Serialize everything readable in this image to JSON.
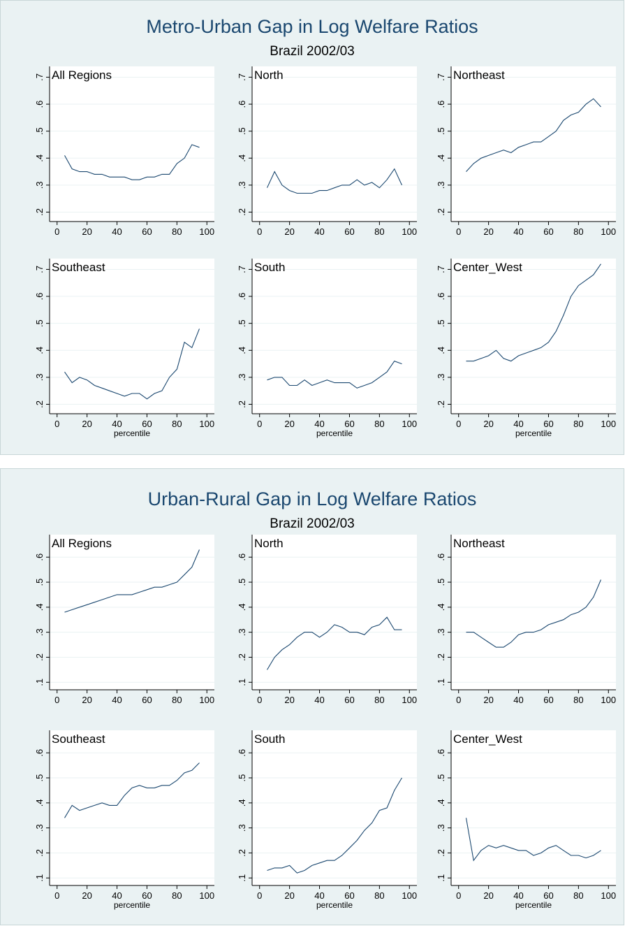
{
  "figures": [
    {
      "title": "Metro-Urban Gap in Log Welfare Ratios",
      "subtitle": "Brazil 2002/03"
    },
    {
      "title": "Urban-Rural Gap in Log Welfare Ratios",
      "subtitle": "Brazil 2002/03"
    }
  ],
  "chart_data": [
    {
      "type": "line",
      "title": "All Regions",
      "x": [
        5,
        10,
        15,
        20,
        25,
        30,
        35,
        40,
        45,
        50,
        55,
        60,
        65,
        70,
        75,
        80,
        85,
        90,
        95
      ],
      "values": [
        0.41,
        0.36,
        0.35,
        0.35,
        0.34,
        0.34,
        0.33,
        0.33,
        0.33,
        0.32,
        0.32,
        0.33,
        0.33,
        0.34,
        0.34,
        0.38,
        0.4,
        0.45,
        0.44
      ],
      "color": "#1a476f",
      "grid": true,
      "xlim": [
        -5,
        105
      ],
      "ylim": [
        0.165,
        0.74
      ],
      "xticks": [
        0,
        20,
        40,
        60,
        80,
        100
      ],
      "yticks": [
        {
          "value": 0.2,
          "label": ".2"
        },
        {
          "value": 0.3,
          "label": ".3"
        },
        {
          "value": 0.4,
          "label": ".4"
        },
        {
          "value": 0.5,
          "label": ".5"
        },
        {
          "value": 0.6,
          "label": ".6"
        },
        {
          "value": 0.7,
          "label": ".7"
        }
      ]
    },
    {
      "type": "line",
      "title": "North",
      "x": [
        5,
        10,
        15,
        20,
        25,
        30,
        35,
        40,
        45,
        50,
        55,
        60,
        65,
        70,
        75,
        80,
        85,
        90,
        95
      ],
      "values": [
        0.29,
        0.35,
        0.3,
        0.28,
        0.27,
        0.27,
        0.27,
        0.28,
        0.28,
        0.29,
        0.3,
        0.3,
        0.32,
        0.3,
        0.31,
        0.29,
        0.32,
        0.36,
        0.3
      ],
      "color": "#1a476f",
      "grid": true,
      "xlim": [
        -5,
        105
      ],
      "ylim": [
        0.165,
        0.74
      ],
      "xticks": [
        0,
        20,
        40,
        60,
        80,
        100
      ],
      "yticks": [
        {
          "value": 0.2,
          "label": ".2"
        },
        {
          "value": 0.3,
          "label": ".3"
        },
        {
          "value": 0.4,
          "label": ".4"
        },
        {
          "value": 0.5,
          "label": ".5"
        },
        {
          "value": 0.6,
          "label": ".6"
        },
        {
          "value": 0.7,
          "label": ".7"
        }
      ]
    },
    {
      "type": "line",
      "title": "Northeast",
      "x": [
        5,
        10,
        15,
        20,
        25,
        30,
        35,
        40,
        45,
        50,
        55,
        60,
        65,
        70,
        75,
        80,
        85,
        90,
        95
      ],
      "values": [
        0.35,
        0.38,
        0.4,
        0.41,
        0.42,
        0.43,
        0.42,
        0.44,
        0.45,
        0.46,
        0.46,
        0.48,
        0.5,
        0.54,
        0.56,
        0.57,
        0.6,
        0.62,
        0.59
      ],
      "color": "#1a476f",
      "grid": true,
      "xlim": [
        -5,
        105
      ],
      "ylim": [
        0.165,
        0.74
      ],
      "xticks": [
        0,
        20,
        40,
        60,
        80,
        100
      ],
      "yticks": [
        {
          "value": 0.2,
          "label": ".2"
        },
        {
          "value": 0.3,
          "label": ".3"
        },
        {
          "value": 0.4,
          "label": ".4"
        },
        {
          "value": 0.5,
          "label": ".5"
        },
        {
          "value": 0.6,
          "label": ".6"
        },
        {
          "value": 0.7,
          "label": ".7"
        }
      ]
    },
    {
      "type": "line",
      "title": "Southeast",
      "xlabel": "percentile",
      "x": [
        5,
        10,
        15,
        20,
        25,
        30,
        35,
        40,
        45,
        50,
        55,
        60,
        65,
        70,
        75,
        80,
        85,
        90,
        95
      ],
      "values": [
        0.32,
        0.28,
        0.3,
        0.29,
        0.27,
        0.26,
        0.25,
        0.24,
        0.23,
        0.24,
        0.24,
        0.22,
        0.24,
        0.25,
        0.3,
        0.33,
        0.43,
        0.41,
        0.48
      ],
      "color": "#1a476f",
      "grid": true,
      "xlim": [
        -5,
        105
      ],
      "ylim": [
        0.165,
        0.74
      ],
      "xticks": [
        0,
        20,
        40,
        60,
        80,
        100
      ],
      "yticks": [
        {
          "value": 0.2,
          "label": ".2"
        },
        {
          "value": 0.3,
          "label": ".3"
        },
        {
          "value": 0.4,
          "label": ".4"
        },
        {
          "value": 0.5,
          "label": ".5"
        },
        {
          "value": 0.6,
          "label": ".6"
        },
        {
          "value": 0.7,
          "label": ".7"
        }
      ]
    },
    {
      "type": "line",
      "title": "South",
      "xlabel": "percentile",
      "x": [
        5,
        10,
        15,
        20,
        25,
        30,
        35,
        40,
        45,
        50,
        55,
        60,
        65,
        70,
        75,
        80,
        85,
        90,
        95
      ],
      "values": [
        0.29,
        0.3,
        0.3,
        0.27,
        0.27,
        0.29,
        0.27,
        0.28,
        0.29,
        0.28,
        0.28,
        0.28,
        0.26,
        0.27,
        0.28,
        0.3,
        0.32,
        0.36,
        0.35
      ],
      "color": "#1a476f",
      "grid": true,
      "xlim": [
        -5,
        105
      ],
      "ylim": [
        0.165,
        0.74
      ],
      "xticks": [
        0,
        20,
        40,
        60,
        80,
        100
      ],
      "yticks": [
        {
          "value": 0.2,
          "label": ".2"
        },
        {
          "value": 0.3,
          "label": ".3"
        },
        {
          "value": 0.4,
          "label": ".4"
        },
        {
          "value": 0.5,
          "label": ".5"
        },
        {
          "value": 0.6,
          "label": ".6"
        },
        {
          "value": 0.7,
          "label": ".7"
        }
      ]
    },
    {
      "type": "line",
      "title": "Center_West",
      "xlabel": "percentile",
      "x": [
        5,
        10,
        15,
        20,
        25,
        30,
        35,
        40,
        45,
        50,
        55,
        60,
        65,
        70,
        75,
        80,
        85,
        90,
        95
      ],
      "values": [
        0.36,
        0.36,
        0.37,
        0.38,
        0.4,
        0.37,
        0.36,
        0.38,
        0.39,
        0.4,
        0.41,
        0.43,
        0.47,
        0.53,
        0.6,
        0.64,
        0.66,
        0.68,
        0.72
      ],
      "color": "#1a476f",
      "grid": true,
      "xlim": [
        -5,
        105
      ],
      "ylim": [
        0.165,
        0.74
      ],
      "xticks": [
        0,
        20,
        40,
        60,
        80,
        100
      ],
      "yticks": [
        {
          "value": 0.2,
          "label": ".2"
        },
        {
          "value": 0.3,
          "label": ".3"
        },
        {
          "value": 0.4,
          "label": ".4"
        },
        {
          "value": 0.5,
          "label": ".5"
        },
        {
          "value": 0.6,
          "label": ".6"
        },
        {
          "value": 0.7,
          "label": ".7"
        }
      ]
    },
    {
      "type": "line",
      "title": "All Regions",
      "x": [
        5,
        10,
        15,
        20,
        25,
        30,
        35,
        40,
        45,
        50,
        55,
        60,
        65,
        70,
        75,
        80,
        85,
        90,
        95
      ],
      "values": [
        0.38,
        0.39,
        0.4,
        0.41,
        0.42,
        0.43,
        0.44,
        0.45,
        0.45,
        0.45,
        0.46,
        0.47,
        0.48,
        0.48,
        0.49,
        0.5,
        0.53,
        0.56,
        0.63
      ],
      "color": "#1a476f",
      "grid": true,
      "xlim": [
        -5,
        105
      ],
      "ylim": [
        0.07,
        0.69
      ],
      "xticks": [
        0,
        20,
        40,
        60,
        80,
        100
      ],
      "yticks": [
        {
          "value": 0.1,
          "label": ".1"
        },
        {
          "value": 0.2,
          "label": ".2"
        },
        {
          "value": 0.3,
          "label": ".3"
        },
        {
          "value": 0.4,
          "label": ".4"
        },
        {
          "value": 0.5,
          "label": ".5"
        },
        {
          "value": 0.6,
          "label": ".6"
        }
      ]
    },
    {
      "type": "line",
      "title": "North",
      "x": [
        5,
        10,
        15,
        20,
        25,
        30,
        35,
        40,
        45,
        50,
        55,
        60,
        65,
        70,
        75,
        80,
        85,
        90,
        95
      ],
      "values": [
        0.15,
        0.2,
        0.23,
        0.25,
        0.28,
        0.3,
        0.3,
        0.28,
        0.3,
        0.33,
        0.32,
        0.3,
        0.3,
        0.29,
        0.32,
        0.33,
        0.36,
        0.31,
        0.31
      ],
      "color": "#1a476f",
      "grid": true,
      "xlim": [
        -5,
        105
      ],
      "ylim": [
        0.07,
        0.69
      ],
      "xticks": [
        0,
        20,
        40,
        60,
        80,
        100
      ],
      "yticks": [
        {
          "value": 0.1,
          "label": ".1"
        },
        {
          "value": 0.2,
          "label": ".2"
        },
        {
          "value": 0.3,
          "label": ".3"
        },
        {
          "value": 0.4,
          "label": ".4"
        },
        {
          "value": 0.5,
          "label": ".5"
        },
        {
          "value": 0.6,
          "label": ".6"
        }
      ]
    },
    {
      "type": "line",
      "title": "Northeast",
      "x": [
        5,
        10,
        15,
        20,
        25,
        30,
        35,
        40,
        45,
        50,
        55,
        60,
        65,
        70,
        75,
        80,
        85,
        90,
        95
      ],
      "values": [
        0.3,
        0.3,
        0.28,
        0.26,
        0.24,
        0.24,
        0.26,
        0.29,
        0.3,
        0.3,
        0.31,
        0.33,
        0.34,
        0.35,
        0.37,
        0.38,
        0.4,
        0.44,
        0.51
      ],
      "color": "#1a476f",
      "grid": true,
      "xlim": [
        -5,
        105
      ],
      "ylim": [
        0.07,
        0.69
      ],
      "xticks": [
        0,
        20,
        40,
        60,
        80,
        100
      ],
      "yticks": [
        {
          "value": 0.1,
          "label": ".1"
        },
        {
          "value": 0.2,
          "label": ".2"
        },
        {
          "value": 0.3,
          "label": ".3"
        },
        {
          "value": 0.4,
          "label": ".4"
        },
        {
          "value": 0.5,
          "label": ".5"
        },
        {
          "value": 0.6,
          "label": ".6"
        }
      ]
    },
    {
      "type": "line",
      "title": "Southeast",
      "xlabel": "percentile",
      "x": [
        5,
        10,
        15,
        20,
        25,
        30,
        35,
        40,
        45,
        50,
        55,
        60,
        65,
        70,
        75,
        80,
        85,
        90,
        95
      ],
      "values": [
        0.34,
        0.39,
        0.37,
        0.38,
        0.39,
        0.4,
        0.39,
        0.39,
        0.43,
        0.46,
        0.47,
        0.46,
        0.46,
        0.47,
        0.47,
        0.49,
        0.52,
        0.53,
        0.56
      ],
      "color": "#1a476f",
      "grid": true,
      "xlim": [
        -5,
        105
      ],
      "ylim": [
        0.07,
        0.69
      ],
      "xticks": [
        0,
        20,
        40,
        60,
        80,
        100
      ],
      "yticks": [
        {
          "value": 0.1,
          "label": ".1"
        },
        {
          "value": 0.2,
          "label": ".2"
        },
        {
          "value": 0.3,
          "label": ".3"
        },
        {
          "value": 0.4,
          "label": ".4"
        },
        {
          "value": 0.5,
          "label": ".5"
        },
        {
          "value": 0.6,
          "label": ".6"
        }
      ]
    },
    {
      "type": "line",
      "title": "South",
      "xlabel": "percentile",
      "x": [
        5,
        10,
        15,
        20,
        25,
        30,
        35,
        40,
        45,
        50,
        55,
        60,
        65,
        70,
        75,
        80,
        85,
        90,
        95
      ],
      "values": [
        0.13,
        0.14,
        0.14,
        0.15,
        0.12,
        0.13,
        0.15,
        0.16,
        0.17,
        0.17,
        0.19,
        0.22,
        0.25,
        0.29,
        0.32,
        0.37,
        0.38,
        0.45,
        0.5
      ],
      "color": "#1a476f",
      "grid": true,
      "xlim": [
        -5,
        105
      ],
      "ylim": [
        0.07,
        0.69
      ],
      "xticks": [
        0,
        20,
        40,
        60,
        80,
        100
      ],
      "yticks": [
        {
          "value": 0.1,
          "label": ".1"
        },
        {
          "value": 0.2,
          "label": ".2"
        },
        {
          "value": 0.3,
          "label": ".3"
        },
        {
          "value": 0.4,
          "label": ".4"
        },
        {
          "value": 0.5,
          "label": ".5"
        },
        {
          "value": 0.6,
          "label": ".6"
        }
      ]
    },
    {
      "type": "line",
      "title": "Center_West",
      "xlabel": "percentile",
      "x": [
        5,
        10,
        15,
        20,
        25,
        30,
        35,
        40,
        45,
        50,
        55,
        60,
        65,
        70,
        75,
        80,
        85,
        90,
        95
      ],
      "values": [
        0.34,
        0.17,
        0.21,
        0.23,
        0.22,
        0.23,
        0.22,
        0.21,
        0.21,
        0.19,
        0.2,
        0.22,
        0.23,
        0.21,
        0.19,
        0.19,
        0.18,
        0.19,
        0.21
      ],
      "color": "#1a476f",
      "grid": true,
      "xlim": [
        -5,
        105
      ],
      "ylim": [
        0.07,
        0.69
      ],
      "xticks": [
        0,
        20,
        40,
        60,
        80,
        100
      ],
      "yticks": [
        {
          "value": 0.1,
          "label": ".1"
        },
        {
          "value": 0.2,
          "label": ".2"
        },
        {
          "value": 0.3,
          "label": ".3"
        },
        {
          "value": 0.4,
          "label": ".4"
        },
        {
          "value": 0.5,
          "label": ".5"
        },
        {
          "value": 0.6,
          "label": ".6"
        }
      ]
    }
  ]
}
